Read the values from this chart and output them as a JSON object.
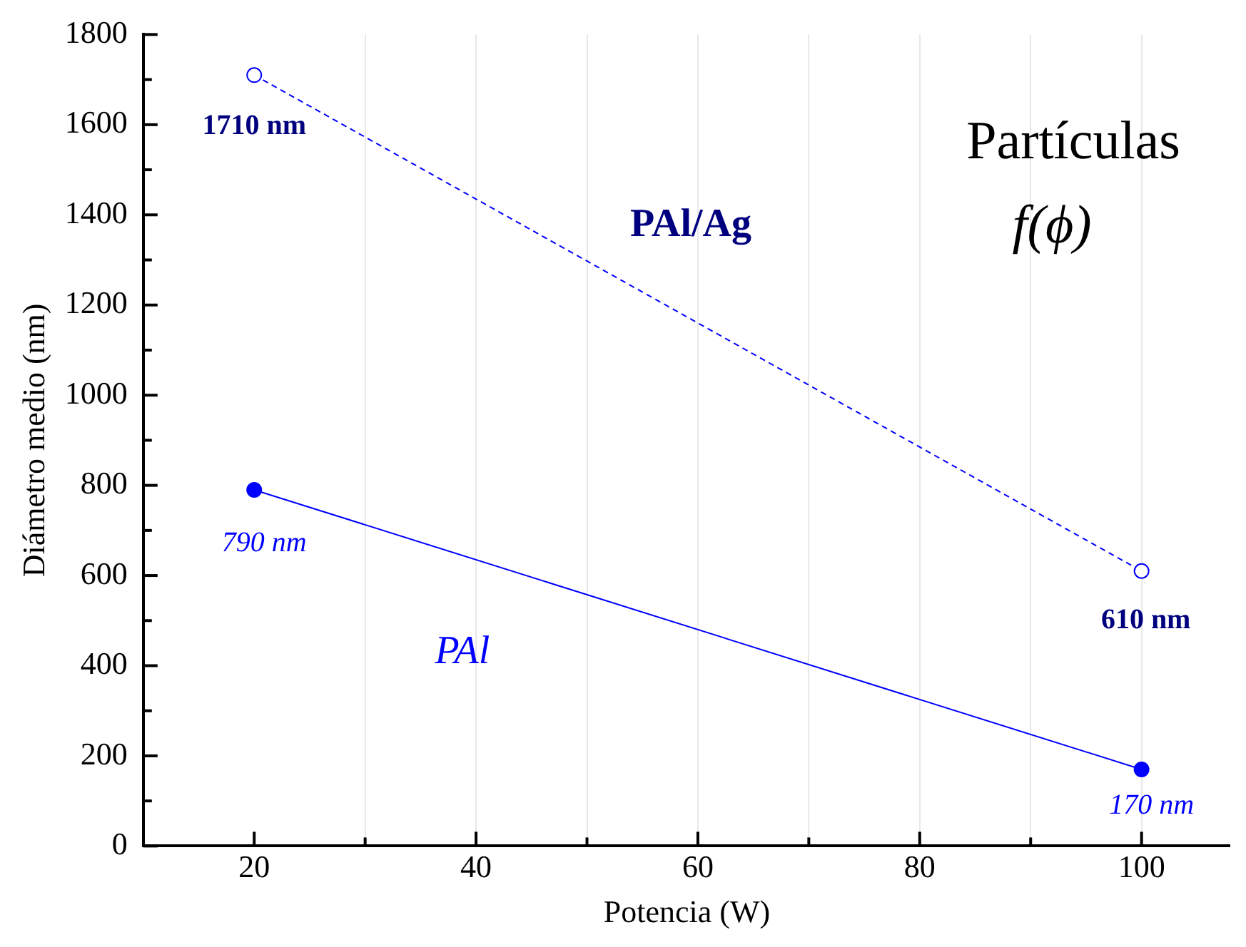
{
  "chart_data": {
    "type": "line",
    "xlabel": "Potencia (W)",
    "ylabel": "Diámetro medio (nm)",
    "x": [
      20,
      100
    ],
    "series": [
      {
        "name": "PAl/Ag",
        "color": "#0000ff",
        "values": [
          1710,
          610
        ],
        "value_labels": [
          "1710 nm",
          "610 nm"
        ],
        "line_style": "dashed"
      },
      {
        "name": "PAl",
        "color": "#0000ff",
        "values": [
          790,
          170
        ],
        "value_labels": [
          "790 nm",
          "170 nm"
        ],
        "line_style": "solid"
      }
    ],
    "xlim": [
      10,
      108
    ],
    "xticks": [
      20,
      {
        "value": 30,
        "label": null
      },
      40,
      {
        "value": 50,
        "label": null
      },
      60,
      {
        "value": 70,
        "label": null
      },
      80,
      {
        "value": 90,
        "label": null
      },
      100
    ],
    "ylim": [
      0,
      1800
    ],
    "yticks": [
      0,
      {
        "value": 100,
        "label": null
      },
      200,
      {
        "value": 300,
        "label": null
      },
      400,
      {
        "value": 500,
        "label": null
      },
      600,
      {
        "value": 700,
        "label": null
      },
      800,
      {
        "value": 900,
        "label": null
      },
      1000,
      {
        "value": 1100,
        "label": null
      },
      1200,
      {
        "value": 1300,
        "label": null
      },
      1400,
      {
        "value": 1500,
        "label": null
      },
      1600,
      {
        "value": 1700,
        "label": null
      },
      1800
    ],
    "grid": "x",
    "marker": "circle",
    "legend": false,
    "annotations": [
      "Partículas",
      "f(ϕ)"
    ]
  }
}
